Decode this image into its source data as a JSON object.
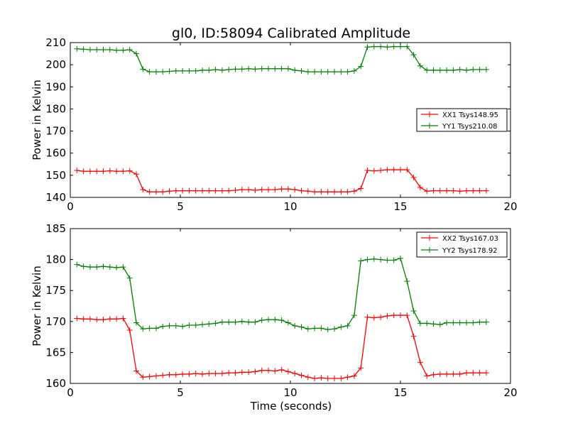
{
  "chart_data": [
    {
      "type": "line",
      "title": "gl0, ID:58094 Calibrated Amplitude",
      "xlabel": "",
      "ylabel": "Power in Kelvin",
      "xlim": [
        0,
        20
      ],
      "ylim": [
        140,
        210
      ],
      "xticks": [
        "0",
        "5",
        "10",
        "15",
        "20"
      ],
      "yticks": [
        "140",
        "150",
        "160",
        "170",
        "180",
        "190",
        "200",
        "210"
      ],
      "grid": false,
      "legend_position": "center-right",
      "x": [
        0.3,
        0.6,
        0.9,
        1.2,
        1.5,
        1.8,
        2.1,
        2.4,
        2.7,
        3.0,
        3.3,
        3.6,
        3.9,
        4.2,
        4.5,
        4.8,
        5.1,
        5.4,
        5.7,
        6.0,
        6.3,
        6.6,
        6.9,
        7.2,
        7.5,
        7.8,
        8.1,
        8.4,
        8.7,
        9.0,
        9.3,
        9.6,
        9.9,
        10.2,
        10.5,
        10.8,
        11.1,
        11.4,
        11.7,
        12.0,
        12.3,
        12.6,
        12.9,
        13.2,
        13.5,
        13.8,
        14.1,
        14.4,
        14.7,
        15.0,
        15.3,
        15.6,
        15.9,
        16.2,
        16.5,
        16.8,
        17.1,
        17.4,
        17.7,
        18.0,
        18.3,
        18.6,
        18.9
      ],
      "series": [
        {
          "name": "XX1 Tsys148.95",
          "color": "#ff0000",
          "values": [
            152.2,
            151.8,
            151.8,
            151.8,
            151.8,
            152.0,
            151.8,
            151.8,
            152.0,
            150.5,
            143.5,
            142.5,
            142.5,
            142.5,
            142.8,
            143.0,
            143.0,
            143.0,
            143.0,
            143.0,
            143.0,
            143.0,
            143.0,
            143.0,
            143.2,
            143.5,
            143.5,
            143.2,
            143.5,
            143.5,
            143.5,
            143.8,
            143.8,
            143.5,
            143.0,
            142.8,
            142.5,
            142.5,
            142.5,
            142.5,
            142.5,
            142.5,
            142.8,
            144.0,
            152.2,
            152.0,
            152.2,
            152.5,
            152.5,
            152.5,
            152.5,
            149.0,
            144.5,
            142.8,
            143.0,
            143.0,
            143.0,
            143.0,
            142.8,
            143.0,
            143.0,
            143.0,
            143.0
          ]
        },
        {
          "name": "YY1 Tsys210.08",
          "color": "#008000",
          "values": [
            207.2,
            207.0,
            206.8,
            206.8,
            206.8,
            206.8,
            206.5,
            206.5,
            206.8,
            205.0,
            198.0,
            196.8,
            196.8,
            196.8,
            197.0,
            197.2,
            197.2,
            197.2,
            197.2,
            197.5,
            197.5,
            197.8,
            197.5,
            197.8,
            198.0,
            198.0,
            198.2,
            198.0,
            198.2,
            198.2,
            198.2,
            198.2,
            198.2,
            197.5,
            197.2,
            196.8,
            196.8,
            196.8,
            196.8,
            196.8,
            196.8,
            196.8,
            197.2,
            199.2,
            208.0,
            208.2,
            208.2,
            208.0,
            208.2,
            208.2,
            208.2,
            204.5,
            199.5,
            197.5,
            197.5,
            197.5,
            197.5,
            197.5,
            197.8,
            197.5,
            197.8,
            197.8,
            197.8
          ]
        }
      ]
    },
    {
      "type": "line",
      "title": "",
      "xlabel": "Time (seconds)",
      "ylabel": "Power in Kelvin",
      "xlim": [
        0,
        20
      ],
      "ylim": [
        160,
        185
      ],
      "xticks": [
        "0",
        "5",
        "10",
        "15",
        "20"
      ],
      "yticks": [
        "160",
        "165",
        "170",
        "175",
        "180",
        "185"
      ],
      "grid": false,
      "legend_position": "top-right",
      "x": [
        0.3,
        0.6,
        0.9,
        1.2,
        1.5,
        1.8,
        2.1,
        2.4,
        2.7,
        3.0,
        3.3,
        3.6,
        3.9,
        4.2,
        4.5,
        4.8,
        5.1,
        5.4,
        5.7,
        6.0,
        6.3,
        6.6,
        6.9,
        7.2,
        7.5,
        7.8,
        8.1,
        8.4,
        8.7,
        9.0,
        9.3,
        9.6,
        9.9,
        10.2,
        10.5,
        10.8,
        11.1,
        11.4,
        11.7,
        12.0,
        12.3,
        12.6,
        12.9,
        13.2,
        13.5,
        13.8,
        14.1,
        14.4,
        14.7,
        15.0,
        15.3,
        15.6,
        15.9,
        16.2,
        16.5,
        16.8,
        17.1,
        17.4,
        17.7,
        18.0,
        18.3,
        18.6,
        18.9
      ],
      "series": [
        {
          "name": "XX2 Tsys167.03",
          "color": "#ff0000",
          "values": [
            170.5,
            170.4,
            170.4,
            170.3,
            170.3,
            170.4,
            170.4,
            170.5,
            168.6,
            162.0,
            161.0,
            161.1,
            161.2,
            161.3,
            161.4,
            161.4,
            161.5,
            161.5,
            161.6,
            161.5,
            161.6,
            161.6,
            161.6,
            161.7,
            161.7,
            161.8,
            161.8,
            161.9,
            162.1,
            162.1,
            162.0,
            162.2,
            161.9,
            161.6,
            161.3,
            161.0,
            160.8,
            160.9,
            160.8,
            160.8,
            160.8,
            161.0,
            161.2,
            162.5,
            170.7,
            170.6,
            170.7,
            170.9,
            171.0,
            171.0,
            171.0,
            167.6,
            163.4,
            161.2,
            161.4,
            161.5,
            161.5,
            161.5,
            161.5,
            161.7,
            161.7,
            161.7,
            161.7
          ]
        },
        {
          "name": "YY2 Tsys178.92",
          "color": "#008000",
          "values": [
            179.2,
            178.9,
            178.8,
            178.8,
            178.9,
            178.8,
            178.7,
            178.8,
            177.0,
            169.8,
            168.8,
            168.9,
            168.9,
            169.2,
            169.3,
            169.3,
            169.2,
            169.4,
            169.4,
            169.5,
            169.6,
            169.7,
            169.9,
            169.9,
            169.9,
            170.0,
            169.9,
            169.9,
            170.2,
            170.3,
            170.3,
            170.2,
            169.8,
            169.3,
            169.1,
            168.8,
            168.9,
            168.9,
            168.7,
            168.8,
            169.1,
            169.3,
            171.0,
            179.8,
            180.0,
            180.1,
            180.0,
            179.9,
            179.9,
            180.2,
            176.5,
            171.7,
            169.7,
            169.7,
            169.6,
            169.5,
            169.8,
            169.8,
            169.8,
            169.8,
            169.8,
            169.9,
            169.9
          ]
        }
      ]
    }
  ]
}
